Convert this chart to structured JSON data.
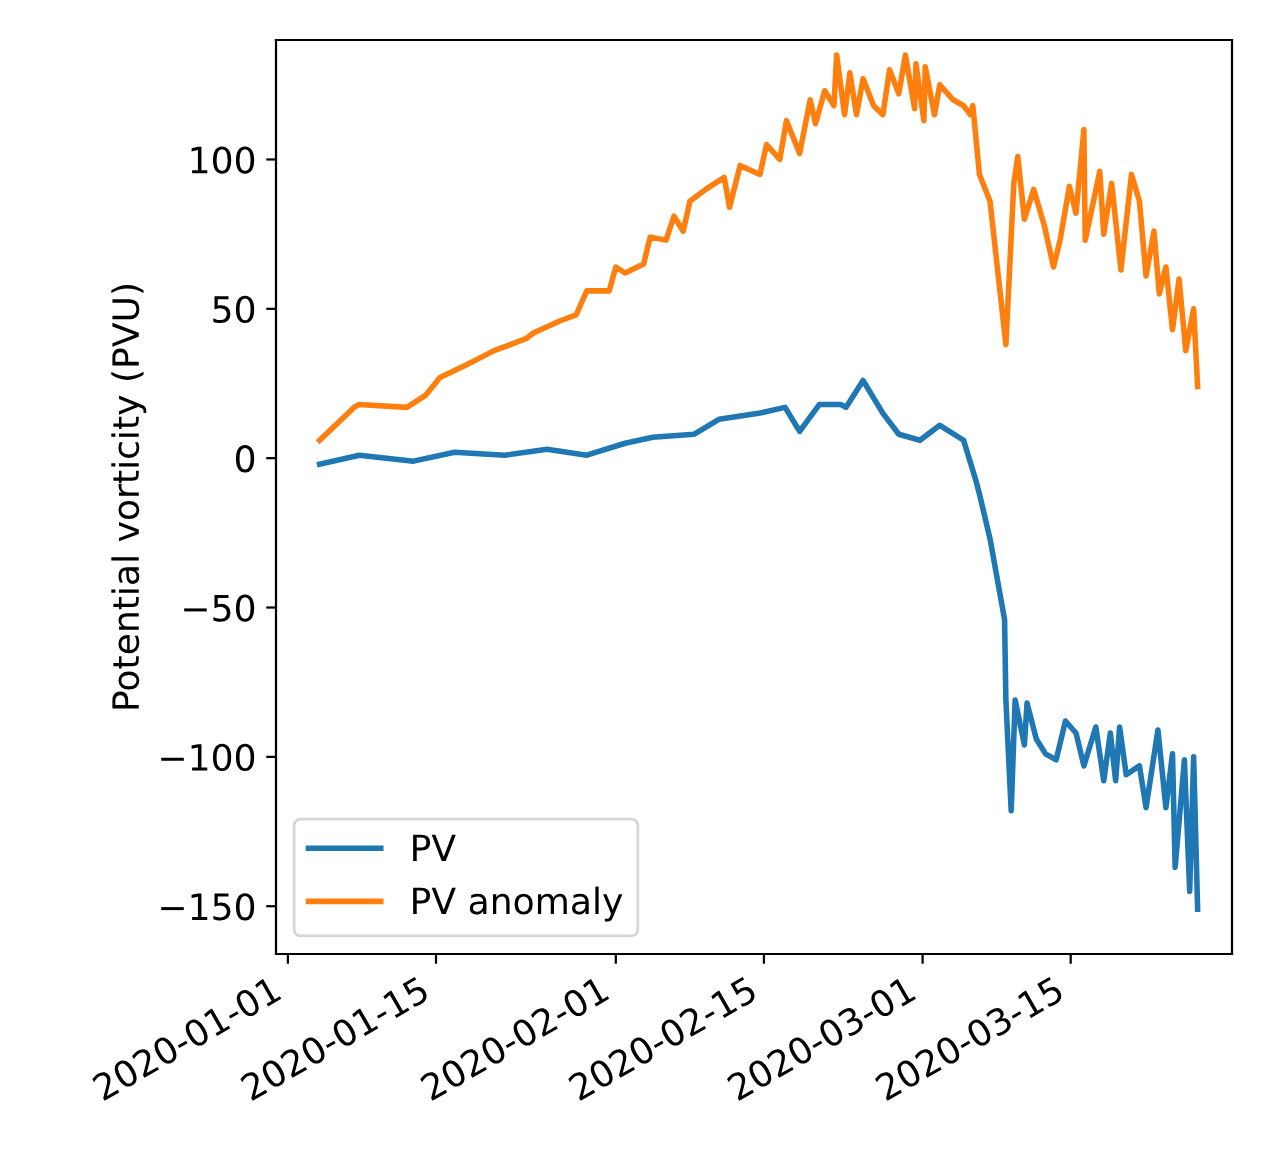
{
  "chart_data": {
    "type": "line",
    "ylabel": "Potential vorticity (PVU)",
    "xlim": [
      "2019-12-30T21:00",
      "2020-03-30T06:00"
    ],
    "xticks": [
      {
        "value": "2020-01-01",
        "label": "2020-01-01"
      },
      {
        "value": "2020-01-15",
        "label": "2020-01-15"
      },
      {
        "value": "2020-02-01",
        "label": "2020-02-01"
      },
      {
        "value": "2020-02-15",
        "label": "2020-02-15"
      },
      {
        "value": "2020-03-01",
        "label": "2020-03-01"
      },
      {
        "value": "2020-03-15",
        "label": "2020-03-15"
      }
    ],
    "ylim": [
      -166,
      140
    ],
    "yticks": [
      -150,
      -100,
      -50,
      0,
      50,
      100
    ],
    "grid": false,
    "legend": "bottom left",
    "marker": "none",
    "line_style": "solid",
    "series": [
      {
        "name": "PV",
        "color": "#1f77b4",
        "x": [
          "2020-01-04T00:00",
          "2020-01-07T18:00",
          "2020-01-12T21:00",
          "2020-01-16T18:00",
          "2020-01-21T12:00",
          "2020-01-25T12:00",
          "2020-01-29T06:00",
          "2020-02-01T21:00",
          "2020-02-04T12:00",
          "2020-02-08T09:00",
          "2020-02-10T18:00",
          "2020-02-14T12:00",
          "2020-02-17T00:00",
          "2020-02-18T09:00",
          "2020-02-20T06:00",
          "2020-02-22T06:00",
          "2020-02-22T18:00",
          "2020-02-24T09:00",
          "2020-02-26T06:00",
          "2020-02-27T18:00",
          "2020-02-29T18:00",
          "2020-03-02T15:00",
          "2020-03-04T21:00",
          "2020-03-06T00:00",
          "2020-03-06T09:00",
          "2020-03-07T09:00",
          "2020-03-08T18:00",
          "2020-03-08T21:00",
          "2020-03-09T09:00",
          "2020-03-09T18:00",
          "2020-03-10T15:00",
          "2020-03-10T21:00",
          "2020-03-11T18:00",
          "2020-03-12T15:00",
          "2020-03-13T15:00",
          "2020-03-14T12:00",
          "2020-03-15T12:00",
          "2020-03-16T06:00",
          "2020-03-17T09:00",
          "2020-03-18T03:00",
          "2020-03-18T18:00",
          "2020-03-19T06:00",
          "2020-03-19T15:00",
          "2020-03-20T06:00",
          "2020-03-21T12:00",
          "2020-03-22T03:00",
          "2020-03-23T06:00",
          "2020-03-24T00:00",
          "2020-03-24T15:00",
          "2020-03-24T21:00",
          "2020-03-25T18:00",
          "2020-03-26T06:00",
          "2020-03-26T15:00",
          "2020-03-27T00:00"
        ],
        "values": [
          -2,
          1,
          -1,
          2,
          1,
          3,
          1,
          5,
          7,
          8,
          13,
          15,
          17,
          9,
          18,
          18,
          17,
          26,
          15,
          8,
          6,
          11,
          6,
          -7,
          -12,
          -27,
          -54,
          -81,
          -118,
          -81,
          -96,
          -82,
          -94,
          -99,
          -101,
          -88,
          -92,
          -103,
          -90,
          -108,
          -92,
          -108,
          -90,
          -106,
          -103,
          -117,
          -91,
          -117,
          -99,
          -137,
          -101,
          -145,
          -100,
          -151
        ]
      },
      {
        "name": "PV anomaly",
        "color": "#ff7f0e",
        "x": [
          "2020-01-04T00:00",
          "2020-01-07T06:00",
          "2020-01-07T18:00",
          "2020-01-12T06:00",
          "2020-01-14T00:00",
          "2020-01-15T09:00",
          "2020-01-17T18:00",
          "2020-01-20T12:00",
          "2020-01-23T12:00",
          "2020-01-24T06:00",
          "2020-01-26T18:00",
          "2020-01-28T06:00",
          "2020-01-29T06:00",
          "2020-01-31T09:00",
          "2020-02-01T00:00",
          "2020-02-01T21:00",
          "2020-02-03T15:00",
          "2020-02-04T06:00",
          "2020-02-05T18:00",
          "2020-02-06T12:00",
          "2020-02-07T09:00",
          "2020-02-08T00:00",
          "2020-02-09T12:00",
          "2020-02-11T06:00",
          "2020-02-11T18:00",
          "2020-02-12T18:00",
          "2020-02-14T15:00",
          "2020-02-15T06:00",
          "2020-02-16T12:00",
          "2020-02-17T03:00",
          "2020-02-18T09:00",
          "2020-02-19T09:00",
          "2020-02-19T21:00",
          "2020-02-20T18:00",
          "2020-02-21T15:00",
          "2020-02-21T21:00",
          "2020-02-22T15:00",
          "2020-02-23T03:00",
          "2020-02-23T18:00",
          "2020-02-24T09:00",
          "2020-02-25T09:00",
          "2020-02-26T06:00",
          "2020-02-26T21:00",
          "2020-02-27T18:00",
          "2020-02-28T09:00",
          "2020-02-29T06:00",
          "2020-02-29T09:00",
          "2020-03-01T03:00",
          "2020-03-01T06:00",
          "2020-03-02T03:00",
          "2020-03-02T15:00",
          "2020-03-03T21:00",
          "2020-03-04T21:00",
          "2020-03-05T12:00",
          "2020-03-05T18:00",
          "2020-03-06T09:00",
          "2020-03-07T09:00",
          "2020-03-08T06:00",
          "2020-03-08T21:00",
          "2020-03-09T15:00",
          "2020-03-10T00:00",
          "2020-03-10T15:00",
          "2020-03-11T12:00",
          "2020-03-12T12:00",
          "2020-03-13T09:00",
          "2020-03-14T00:00",
          "2020-03-14T21:00",
          "2020-03-15T12:00",
          "2020-03-16T06:00",
          "2020-03-16T09:00",
          "2020-03-17T18:00",
          "2020-03-18T03:00",
          "2020-03-18T21:00",
          "2020-03-19T18:00",
          "2020-03-20T18:00",
          "2020-03-21T12:00",
          "2020-03-22T03:00",
          "2020-03-22T21:00",
          "2020-03-23T09:00",
          "2020-03-24T00:00",
          "2020-03-24T15:00",
          "2020-03-25T06:00",
          "2020-03-25T21:00",
          "2020-03-26T15:00",
          "2020-03-27T00:00"
        ],
        "values": [
          6,
          17,
          18,
          17,
          21,
          27,
          31,
          36,
          40,
          42,
          46,
          48,
          56,
          56,
          64,
          62,
          65,
          74,
          73,
          81,
          76,
          86,
          90,
          94,
          84,
          98,
          95,
          105,
          100,
          113,
          102,
          120,
          112,
          123,
          118,
          135,
          115,
          129,
          115,
          127,
          118,
          115,
          130,
          122,
          135,
          117,
          132,
          113,
          131,
          115,
          125,
          120,
          118,
          115,
          118,
          95,
          86,
          58,
          38,
          92,
          101,
          80,
          90,
          78,
          64,
          73,
          91,
          82,
          110,
          73,
          96,
          75,
          92,
          63,
          95,
          86,
          61,
          76,
          55,
          64,
          43,
          60,
          36,
          50,
          24
        ]
      }
    ]
  }
}
